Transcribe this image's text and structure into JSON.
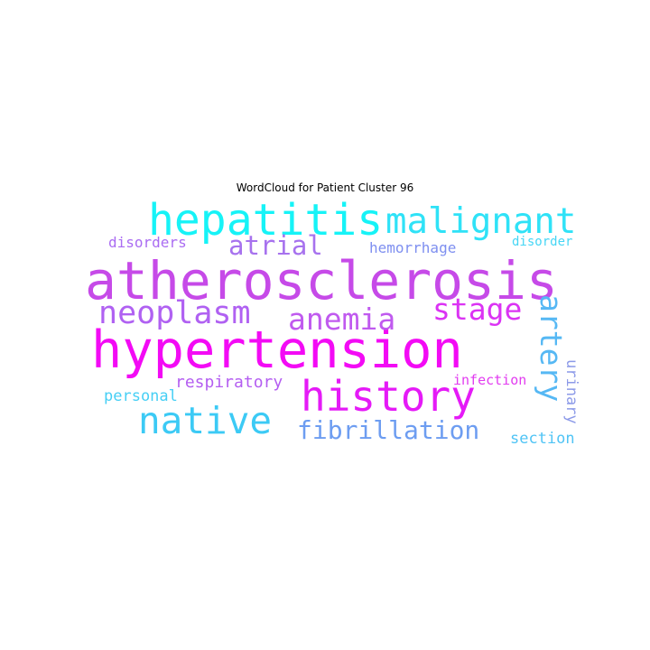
{
  "title": "WordCloud for Patient Cluster 96",
  "colors": {
    "magenta": "#f50cf5",
    "violet": "#b062f2",
    "cyan": "#1ef0f5",
    "sky": "#3bc5f7",
    "periwinkle": "#8e9af2"
  },
  "words": [
    {
      "text": "hypertension",
      "color": "#f30af5"
    },
    {
      "text": "atherosclerosis",
      "color": "#c64ae8"
    },
    {
      "text": "hepatitis",
      "color": "#16f3f7"
    },
    {
      "text": "history",
      "color": "#e51af7"
    },
    {
      "text": "malignant",
      "color": "#2fe2f7"
    },
    {
      "text": "native",
      "color": "#3ccaf5"
    },
    {
      "text": "neoplasm",
      "color": "#b061f2"
    },
    {
      "text": "anemia",
      "color": "#c05aef"
    },
    {
      "text": "stage",
      "color": "#db33f4"
    },
    {
      "text": "artery",
      "color": "#56b8f4"
    },
    {
      "text": "atrial",
      "color": "#a772ee"
    },
    {
      "text": "fibrillation",
      "color": "#6d9df1"
    },
    {
      "text": "disorders",
      "color": "#aa6cf2"
    },
    {
      "text": "hemorrhage",
      "color": "#7e8ff0"
    },
    {
      "text": "disorder",
      "color": "#46d6f5"
    },
    {
      "text": "respiratory",
      "color": "#b45ef1"
    },
    {
      "text": "personal",
      "color": "#46cff5"
    },
    {
      "text": "infection",
      "color": "#e23cf0"
    },
    {
      "text": "urinary",
      "color": "#8c9ae8"
    },
    {
      "text": "section",
      "color": "#50c4f5"
    }
  ]
}
